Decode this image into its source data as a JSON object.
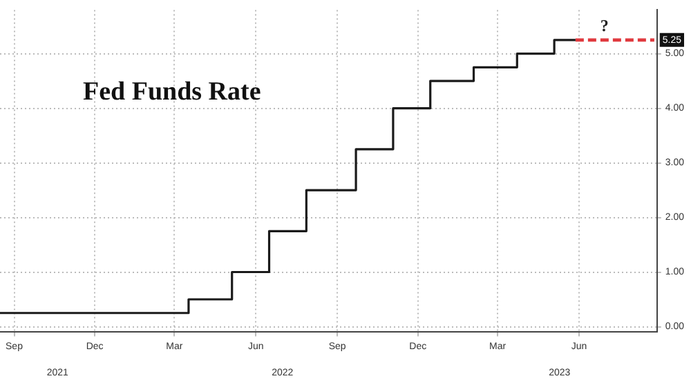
{
  "chart_data": {
    "type": "step",
    "title": "Fed Funds Rate",
    "x": [
      "2021-08-16",
      "2022-03-17",
      "2022-05-05",
      "2022-06-16",
      "2022-07-28",
      "2022-09-22",
      "2022-11-03",
      "2022-12-15",
      "2023-02-02",
      "2023-03-23",
      "2023-05-04",
      "2023-05-28"
    ],
    "series": [
      {
        "color": "#1a1a1a",
        "values": [
          0.25,
          0.5,
          1.0,
          1.75,
          2.5,
          3.25,
          4.0,
          4.5,
          4.75,
          5.0,
          5.25,
          5.25
        ]
      },
      {
        "color": "#e0393e",
        "line_style": "dashed",
        "x": [
          "2023-05-28",
          "2023-08-25"
        ],
        "values": [
          5.25,
          5.25
        ]
      }
    ],
    "xlim": [
      "2021-08-16",
      "2023-08-28"
    ],
    "xticks": [
      {
        "value": "2021-09-01",
        "label": "Sep"
      },
      {
        "value": "2021-12-01",
        "label": "Dec"
      },
      {
        "value": "2022-03-01",
        "label": "Mar"
      },
      {
        "value": "2022-06-01",
        "label": "Jun"
      },
      {
        "value": "2022-09-01",
        "label": "Sep"
      },
      {
        "value": "2022-12-01",
        "label": "Dec"
      },
      {
        "value": "2023-03-01",
        "label": "Mar"
      },
      {
        "value": "2023-06-01",
        "label": "Jun"
      }
    ],
    "x2lim": [
      "2021-08-16",
      "2023-08-28"
    ],
    "x2ticks": [
      {
        "value": "2021-10-20",
        "label": "2021"
      },
      {
        "value": "2022-07-01",
        "label": "2022"
      },
      {
        "value": "2023-05-10",
        "label": "2023"
      }
    ],
    "ylim": [
      -0.1,
      5.8
    ],
    "yticks": [
      {
        "value": 0,
        "label": "0.00"
      },
      {
        "value": 1,
        "label": "1.00"
      },
      {
        "value": 2,
        "label": "2.00"
      },
      {
        "value": 3,
        "label": "3.00"
      },
      {
        "value": 4,
        "label": "4.00"
      },
      {
        "value": 5,
        "label": "5.00"
      }
    ],
    "annotations": [
      "?",
      {
        "text": "5.25",
        "x": "2023-08-28",
        "y": 5.25
      }
    ],
    "grid": true,
    "legend": false,
    "marker": "none",
    "line_style": "solid"
  }
}
